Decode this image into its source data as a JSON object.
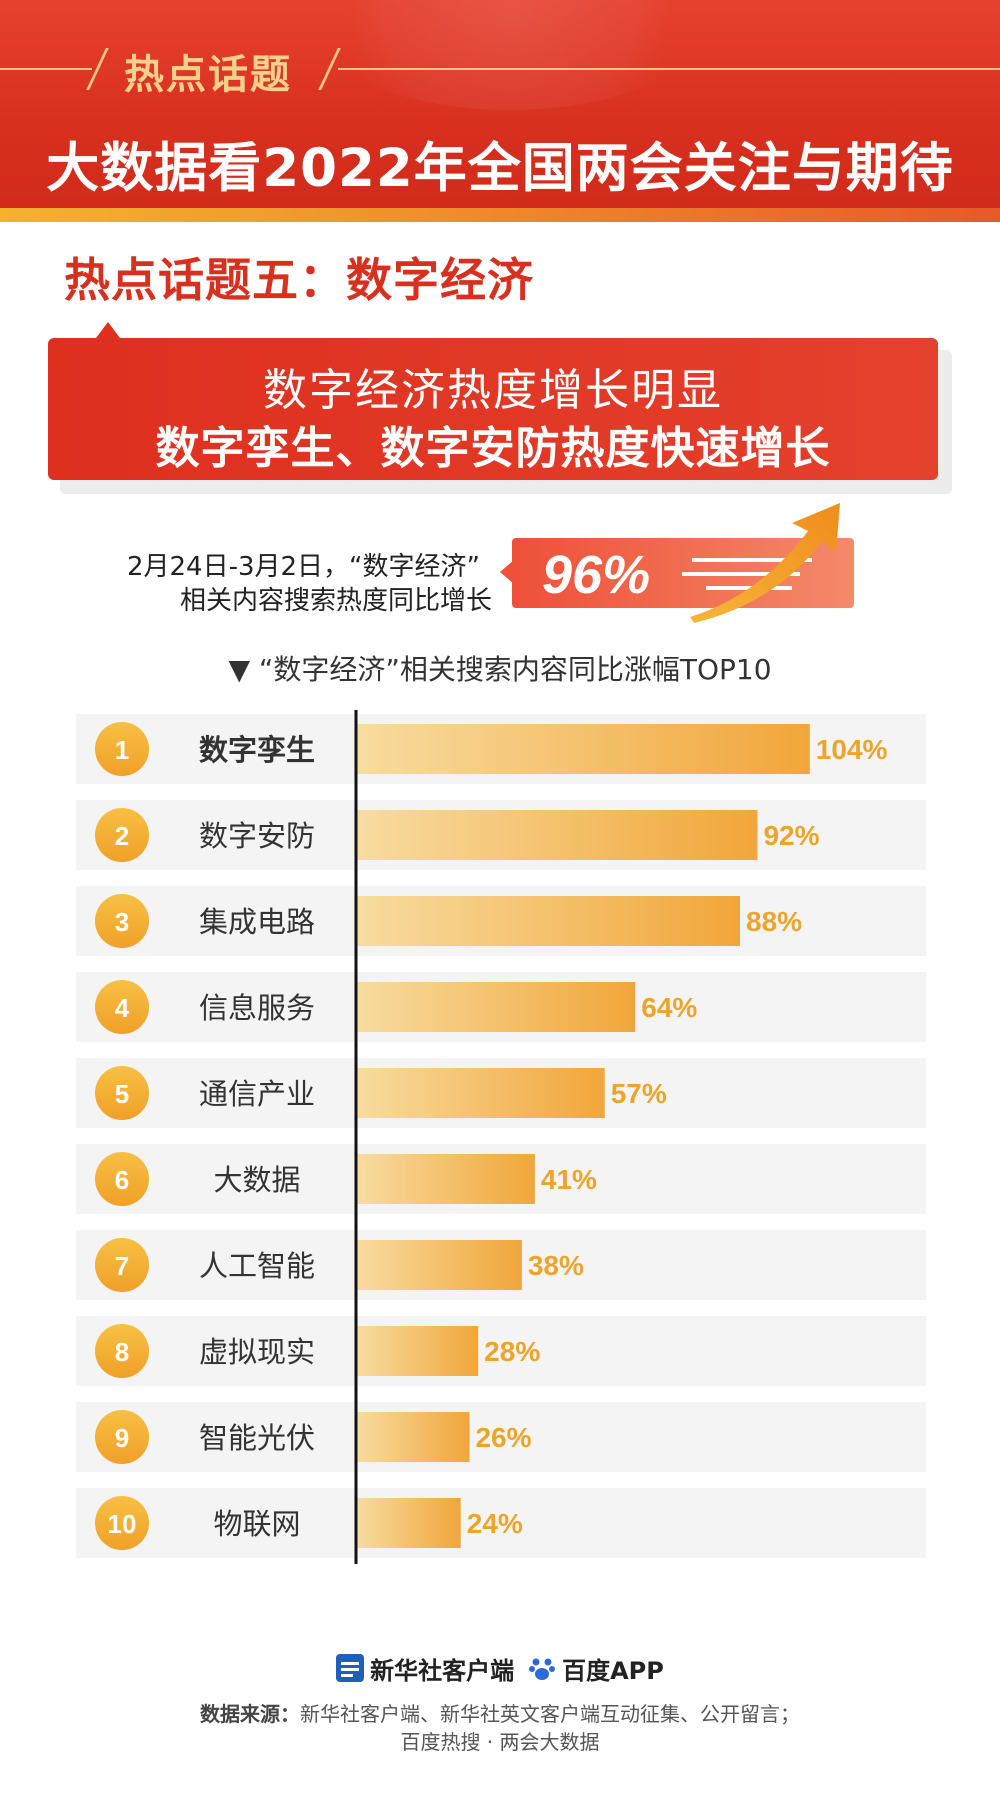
{
  "header": {
    "tag": "热点话题",
    "title": "大数据看2022年全国两会关注与期待"
  },
  "topic": {
    "title": "热点话题五：数字经济"
  },
  "banner": {
    "line1": "数字经济热度增长明显",
    "line2": "数字孪生、数字安防热度快速增长"
  },
  "stat": {
    "desc_line1": "2月24日-3月2日，“数字经济”",
    "desc_line2": "相关内容搜索热度同比增长",
    "value": "96%"
  },
  "chart_heading": "▼ “数字经济”相关搜索内容同比涨幅TOP10",
  "chart_data": {
    "type": "bar",
    "orientation": "horizontal",
    "title": "“数字经济”相关搜索内容同比涨幅TOP10",
    "ranks": [
      "1",
      "2",
      "3",
      "4",
      "5",
      "6",
      "7",
      "8",
      "9",
      "10"
    ],
    "categories": [
      "数字孪生",
      "数字安防",
      "集成电路",
      "信息服务",
      "通信产业",
      "大数据",
      "人工智能",
      "虚拟现实",
      "智能光伏",
      "物联网"
    ],
    "values": [
      104,
      92,
      88,
      64,
      57,
      41,
      38,
      28,
      26,
      24
    ],
    "value_labels": [
      "104%",
      "92%",
      "88%",
      "64%",
      "57%",
      "41%",
      "38%",
      "28%",
      "26%",
      "24%"
    ],
    "unit": "%",
    "xlim": [
      0,
      110
    ],
    "colors": {
      "bar_start": "#f8dca0",
      "bar_end": "#f1a63a",
      "label": "#eea42a",
      "rank_circle": "#f3aa32",
      "row_bg": "#f3f4f3"
    }
  },
  "footer": {
    "logo1": "新华社客户端",
    "logo1_icon": "xinhua-logo-icon",
    "logo2": "百度APP",
    "logo2_icon": "baidu-paw-icon",
    "source_label": "数据来源：",
    "source_line1": "新华社客户端、新华社英文客户端互动征集、公开留言；",
    "source_line2": "百度热搜 · 两会大数据"
  }
}
